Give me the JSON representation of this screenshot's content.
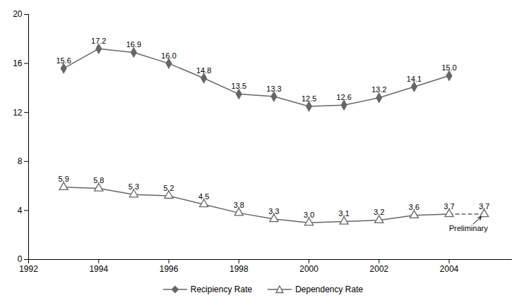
{
  "chart_data": {
    "type": "line",
    "x": [
      1993,
      1994,
      1995,
      1996,
      1997,
      1998,
      1999,
      2000,
      2001,
      2002,
      2003,
      2004,
      2005
    ],
    "series": [
      {
        "name": "Recipiency Rate",
        "color": "#666666",
        "marker": "diamond",
        "values": [
          15.6,
          17.2,
          16.9,
          16.0,
          14.8,
          13.5,
          13.3,
          12.5,
          12.6,
          13.2,
          14.1,
          15.0,
          null
        ],
        "value_labels": [
          "15.6",
          "17.2",
          "16.9",
          "16.0",
          "14.8",
          "13.5",
          "13.3",
          "12.5",
          "12.6",
          "13.2",
          "14.1",
          "15.0",
          null
        ]
      },
      {
        "name": "Dependency Rate",
        "color": "#666666",
        "marker": "triangle-open",
        "values": [
          5.9,
          5.8,
          5.3,
          5.2,
          4.5,
          3.8,
          3.3,
          3.0,
          3.1,
          3.2,
          3.6,
          3.7,
          3.7
        ],
        "value_labels": [
          "5.9",
          "5.8",
          "5.3",
          "5.2",
          "4.5",
          "3.8",
          "3.3",
          "3.0",
          "3.1",
          "3.2",
          "3.6",
          "3.7",
          "3.7"
        ]
      }
    ],
    "xlim": [
      1992,
      2005.8
    ],
    "xticks": [
      1992,
      1994,
      1996,
      1998,
      2000,
      2002,
      2004
    ],
    "ylim": [
      0,
      20
    ],
    "yticks": [
      0,
      4,
      8,
      12,
      16,
      20
    ],
    "grid": false,
    "data_labels": true,
    "legend": "bottom",
    "annotations": [
      {
        "text": "Preliminary",
        "x": 2005,
        "y": 3.7,
        "text_x": 2004.55,
        "text_y": 2.55
      }
    ]
  }
}
